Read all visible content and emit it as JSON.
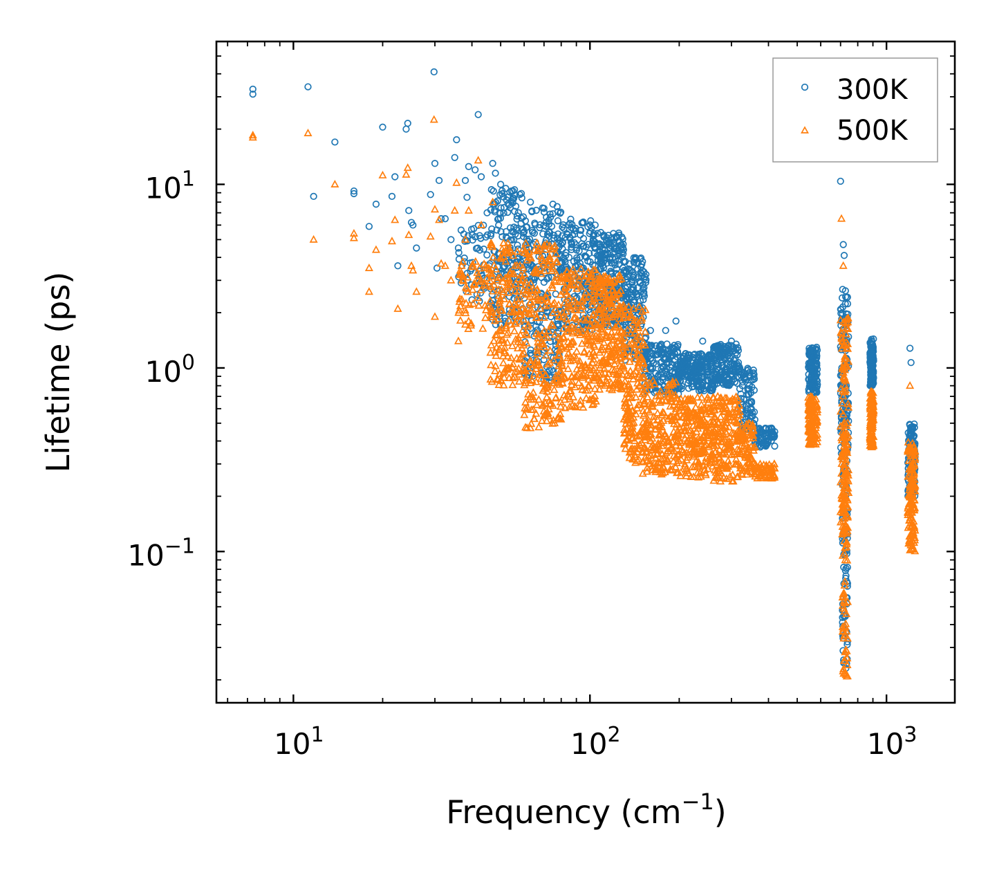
{
  "chart_data": {
    "type": "scatter",
    "xscale": "log",
    "yscale": "log",
    "xlim": [
      5.5,
      1700
    ],
    "ylim": [
      0.015,
      60
    ],
    "xlabel": {
      "text": "Frequency (cm",
      "sup": "−1",
      "suffix": ")"
    },
    "ylabel": "Lifetime (ps)",
    "x_ticks": [
      {
        "value": 10,
        "base": "10",
        "exp": "1"
      },
      {
        "value": 100,
        "base": "10",
        "exp": "2"
      },
      {
        "value": 1000,
        "base": "10",
        "exp": "3"
      }
    ],
    "y_ticks": [
      {
        "value": 10,
        "base": "10",
        "exp": "1"
      },
      {
        "value": 1,
        "base": "10",
        "exp": "0"
      },
      {
        "value": 0.1,
        "base": "10",
        "exp": "−1"
      }
    ],
    "legend_position": "top-right",
    "series": [
      {
        "name": "300K",
        "color": "#1f77b4",
        "marker": "circle",
        "points": [
          [
            7.3,
            31
          ],
          [
            7.3,
            33
          ],
          [
            11.2,
            34
          ],
          [
            11.7,
            8.6
          ],
          [
            13.8,
            17
          ],
          [
            16,
            9.2
          ],
          [
            16,
            8.9
          ],
          [
            18,
            5.9
          ],
          [
            19,
            7.8
          ],
          [
            20,
            20.5
          ],
          [
            21.5,
            8.6
          ],
          [
            22,
            11
          ],
          [
            22.5,
            3.6
          ],
          [
            24,
            20
          ],
          [
            24.3,
            21.5
          ],
          [
            24.5,
            7.2
          ],
          [
            25,
            6.2
          ],
          [
            25.3,
            6.0
          ],
          [
            26,
            4.5
          ],
          [
            29,
            8.8
          ],
          [
            29.8,
            41
          ],
          [
            30,
            13
          ],
          [
            30.5,
            3.5
          ],
          [
            31,
            10.5
          ],
          [
            31.5,
            6.5
          ],
          [
            32.5,
            6.5
          ],
          [
            34,
            5
          ],
          [
            35,
            14
          ],
          [
            35.5,
            17.5
          ],
          [
            36,
            4.5
          ],
          [
            38,
            10.5
          ],
          [
            38.5,
            8.5
          ],
          [
            39,
            12.5
          ],
          [
            41,
            12
          ],
          [
            42,
            24
          ],
          [
            43,
            11
          ],
          [
            45,
            7
          ],
          [
            47,
            13
          ],
          [
            48,
            11.5
          ],
          [
            50,
            10
          ],
          [
            52,
            9.5
          ],
          [
            55,
            9.2
          ],
          [
            58,
            8.8
          ],
          [
            60,
            5.5
          ],
          [
            63,
            8
          ],
          [
            70,
            7.4
          ],
          [
            75,
            7.8
          ],
          [
            78,
            7.1
          ],
          [
            80,
            3.8
          ],
          [
            85,
            4
          ],
          [
            90,
            4.5
          ],
          [
            95,
            3.5
          ],
          [
            100,
            3.2
          ],
          [
            108,
            4.3
          ],
          [
            115,
            4.2
          ],
          [
            120,
            5.4
          ],
          [
            130,
            3.8
          ],
          [
            140,
            3.1
          ],
          [
            148,
            2.1
          ],
          [
            160,
            1.6
          ],
          [
            180,
            1.6
          ],
          [
            195,
            1.8
          ],
          [
            210,
            1.1
          ],
          [
            240,
            1.4
          ],
          [
            270,
            1.3
          ],
          [
            300,
            1.4
          ],
          [
            320,
            1.0
          ],
          [
            350,
            0.6
          ],
          [
            380,
            0.45
          ],
          [
            410,
            0.47
          ],
          [
            700,
            10.4
          ],
          [
            715,
            4.7
          ],
          [
            720,
            4.1
          ],
          [
            1200,
            1.28
          ],
          [
            1210,
            1.07
          ]
        ],
        "clusters": [
          {
            "x": [
              36,
              46
            ],
            "y": [
              2.3,
              6.0
            ],
            "n": 60
          },
          {
            "x": [
              46,
              60
            ],
            "y": [
              1.7,
              9.5
            ],
            "n": 180
          },
          {
            "x": [
              60,
              80
            ],
            "y": [
              0.85,
              7.6
            ],
            "n": 240
          },
          {
            "x": [
              80,
              105
            ],
            "y": [
              1.6,
              6.5
            ],
            "n": 220
          },
          {
            "x": [
              105,
              130
            ],
            "y": [
              1.7,
              5.5
            ],
            "n": 220
          },
          {
            "x": [
              130,
              155
            ],
            "y": [
              1.1,
              4.0
            ],
            "n": 160
          },
          {
            "x": [
              150,
              200
            ],
            "y": [
              0.72,
              1.35
            ],
            "n": 180
          },
          {
            "x": [
              200,
              260
            ],
            "y": [
              0.75,
              1.2
            ],
            "n": 200
          },
          {
            "x": [
              260,
              320
            ],
            "y": [
              0.8,
              1.35
            ],
            "n": 160
          },
          {
            "x": [
              320,
              360
            ],
            "y": [
              0.45,
              1.0
            ],
            "n": 80
          },
          {
            "x": [
              360,
              420
            ],
            "y": [
              0.37,
              0.47
            ],
            "n": 60
          },
          {
            "x": [
              545,
              585
            ],
            "y": [
              0.72,
              1.3
            ],
            "n": 120
          },
          {
            "x": [
              700,
              745
            ],
            "y": [
              0.34,
              2.7
            ],
            "n": 120
          },
          {
            "x": [
              710,
              740
            ],
            "y": [
              0.022,
              0.8
            ],
            "n": 90
          },
          {
            "x": [
              880,
              905
            ],
            "y": [
              0.8,
              1.45
            ],
            "n": 120
          },
          {
            "x": [
              1180,
              1250
            ],
            "y": [
              0.2,
              0.5
            ],
            "n": 120
          }
        ]
      },
      {
        "name": "500K",
        "color": "#ff7f0e",
        "marker": "triangle",
        "points": [
          [
            7.3,
            18
          ],
          [
            7.3,
            18.5
          ],
          [
            11.2,
            19
          ],
          [
            11.7,
            5
          ],
          [
            13.8,
            10
          ],
          [
            16,
            5.4
          ],
          [
            16,
            5.1
          ],
          [
            18,
            2.6
          ],
          [
            18,
            3.5
          ],
          [
            19,
            4.4
          ],
          [
            20,
            11.2
          ],
          [
            21.5,
            4.9
          ],
          [
            22,
            6.4
          ],
          [
            22.5,
            2.1
          ],
          [
            24,
            11.3
          ],
          [
            24.3,
            12.3
          ],
          [
            24.5,
            5.3
          ],
          [
            25,
            3.6
          ],
          [
            25.3,
            3.4
          ],
          [
            26,
            2.6
          ],
          [
            29,
            5.2
          ],
          [
            29.8,
            22.5
          ],
          [
            30,
            7.3
          ],
          [
            30,
            1.9
          ],
          [
            31,
            6.4
          ],
          [
            31.5,
            3.7
          ],
          [
            32.5,
            3.6
          ],
          [
            34,
            3.0
          ],
          [
            35,
            7.2
          ],
          [
            35.5,
            10.2
          ],
          [
            36,
            1.4
          ],
          [
            38,
            5
          ],
          [
            38.5,
            2.7
          ],
          [
            39,
            7.2
          ],
          [
            42,
            13.5
          ],
          [
            43,
            6.0
          ],
          [
            45,
            3.5
          ],
          [
            47,
            8
          ],
          [
            50,
            4
          ],
          [
            52,
            3.8
          ],
          [
            55,
            0.88
          ],
          [
            60,
            1.2
          ],
          [
            63,
            0.47
          ],
          [
            70,
            0.55
          ],
          [
            90,
            0.9
          ],
          [
            320,
            0.4
          ],
          [
            350,
            0.27
          ],
          [
            380,
            0.26
          ],
          [
            410,
            0.28
          ],
          [
            705,
            6.5
          ],
          [
            715,
            3.6
          ],
          [
            1200,
            0.8
          ]
        ],
        "clusters": [
          {
            "x": [
              36,
              46
            ],
            "y": [
              1.6,
              3.8
            ],
            "n": 60
          },
          {
            "x": [
              46,
              60
            ],
            "y": [
              0.8,
              4.8
            ],
            "n": 180
          },
          {
            "x": [
              60,
              80
            ],
            "y": [
              0.47,
              4.8
            ],
            "n": 240
          },
          {
            "x": [
              80,
              105
            ],
            "y": [
              0.6,
              3.5
            ],
            "n": 220
          },
          {
            "x": [
              105,
              130
            ],
            "y": [
              0.75,
              3.2
            ],
            "n": 220
          },
          {
            "x": [
              130,
              155
            ],
            "y": [
              0.3,
              2.2
            ],
            "n": 180
          },
          {
            "x": [
              150,
              200
            ],
            "y": [
              0.26,
              0.85
            ],
            "n": 200
          },
          {
            "x": [
              200,
              260
            ],
            "y": [
              0.25,
              0.7
            ],
            "n": 220
          },
          {
            "x": [
              260,
              320
            ],
            "y": [
              0.24,
              0.7
            ],
            "n": 180
          },
          {
            "x": [
              320,
              360
            ],
            "y": [
              0.26,
              0.5
            ],
            "n": 80
          },
          {
            "x": [
              360,
              420
            ],
            "y": [
              0.25,
              0.3
            ],
            "n": 50
          },
          {
            "x": [
              545,
              585
            ],
            "y": [
              0.38,
              0.7
            ],
            "n": 120
          },
          {
            "x": [
              700,
              745
            ],
            "y": [
              0.12,
              1.9
            ],
            "n": 120
          },
          {
            "x": [
              710,
              740
            ],
            "y": [
              0.02,
              0.5
            ],
            "n": 100
          },
          {
            "x": [
              880,
              905
            ],
            "y": [
              0.37,
              0.75
            ],
            "n": 120
          },
          {
            "x": [
              1180,
              1250
            ],
            "y": [
              0.1,
              0.4
            ],
            "n": 140
          }
        ]
      }
    ]
  }
}
